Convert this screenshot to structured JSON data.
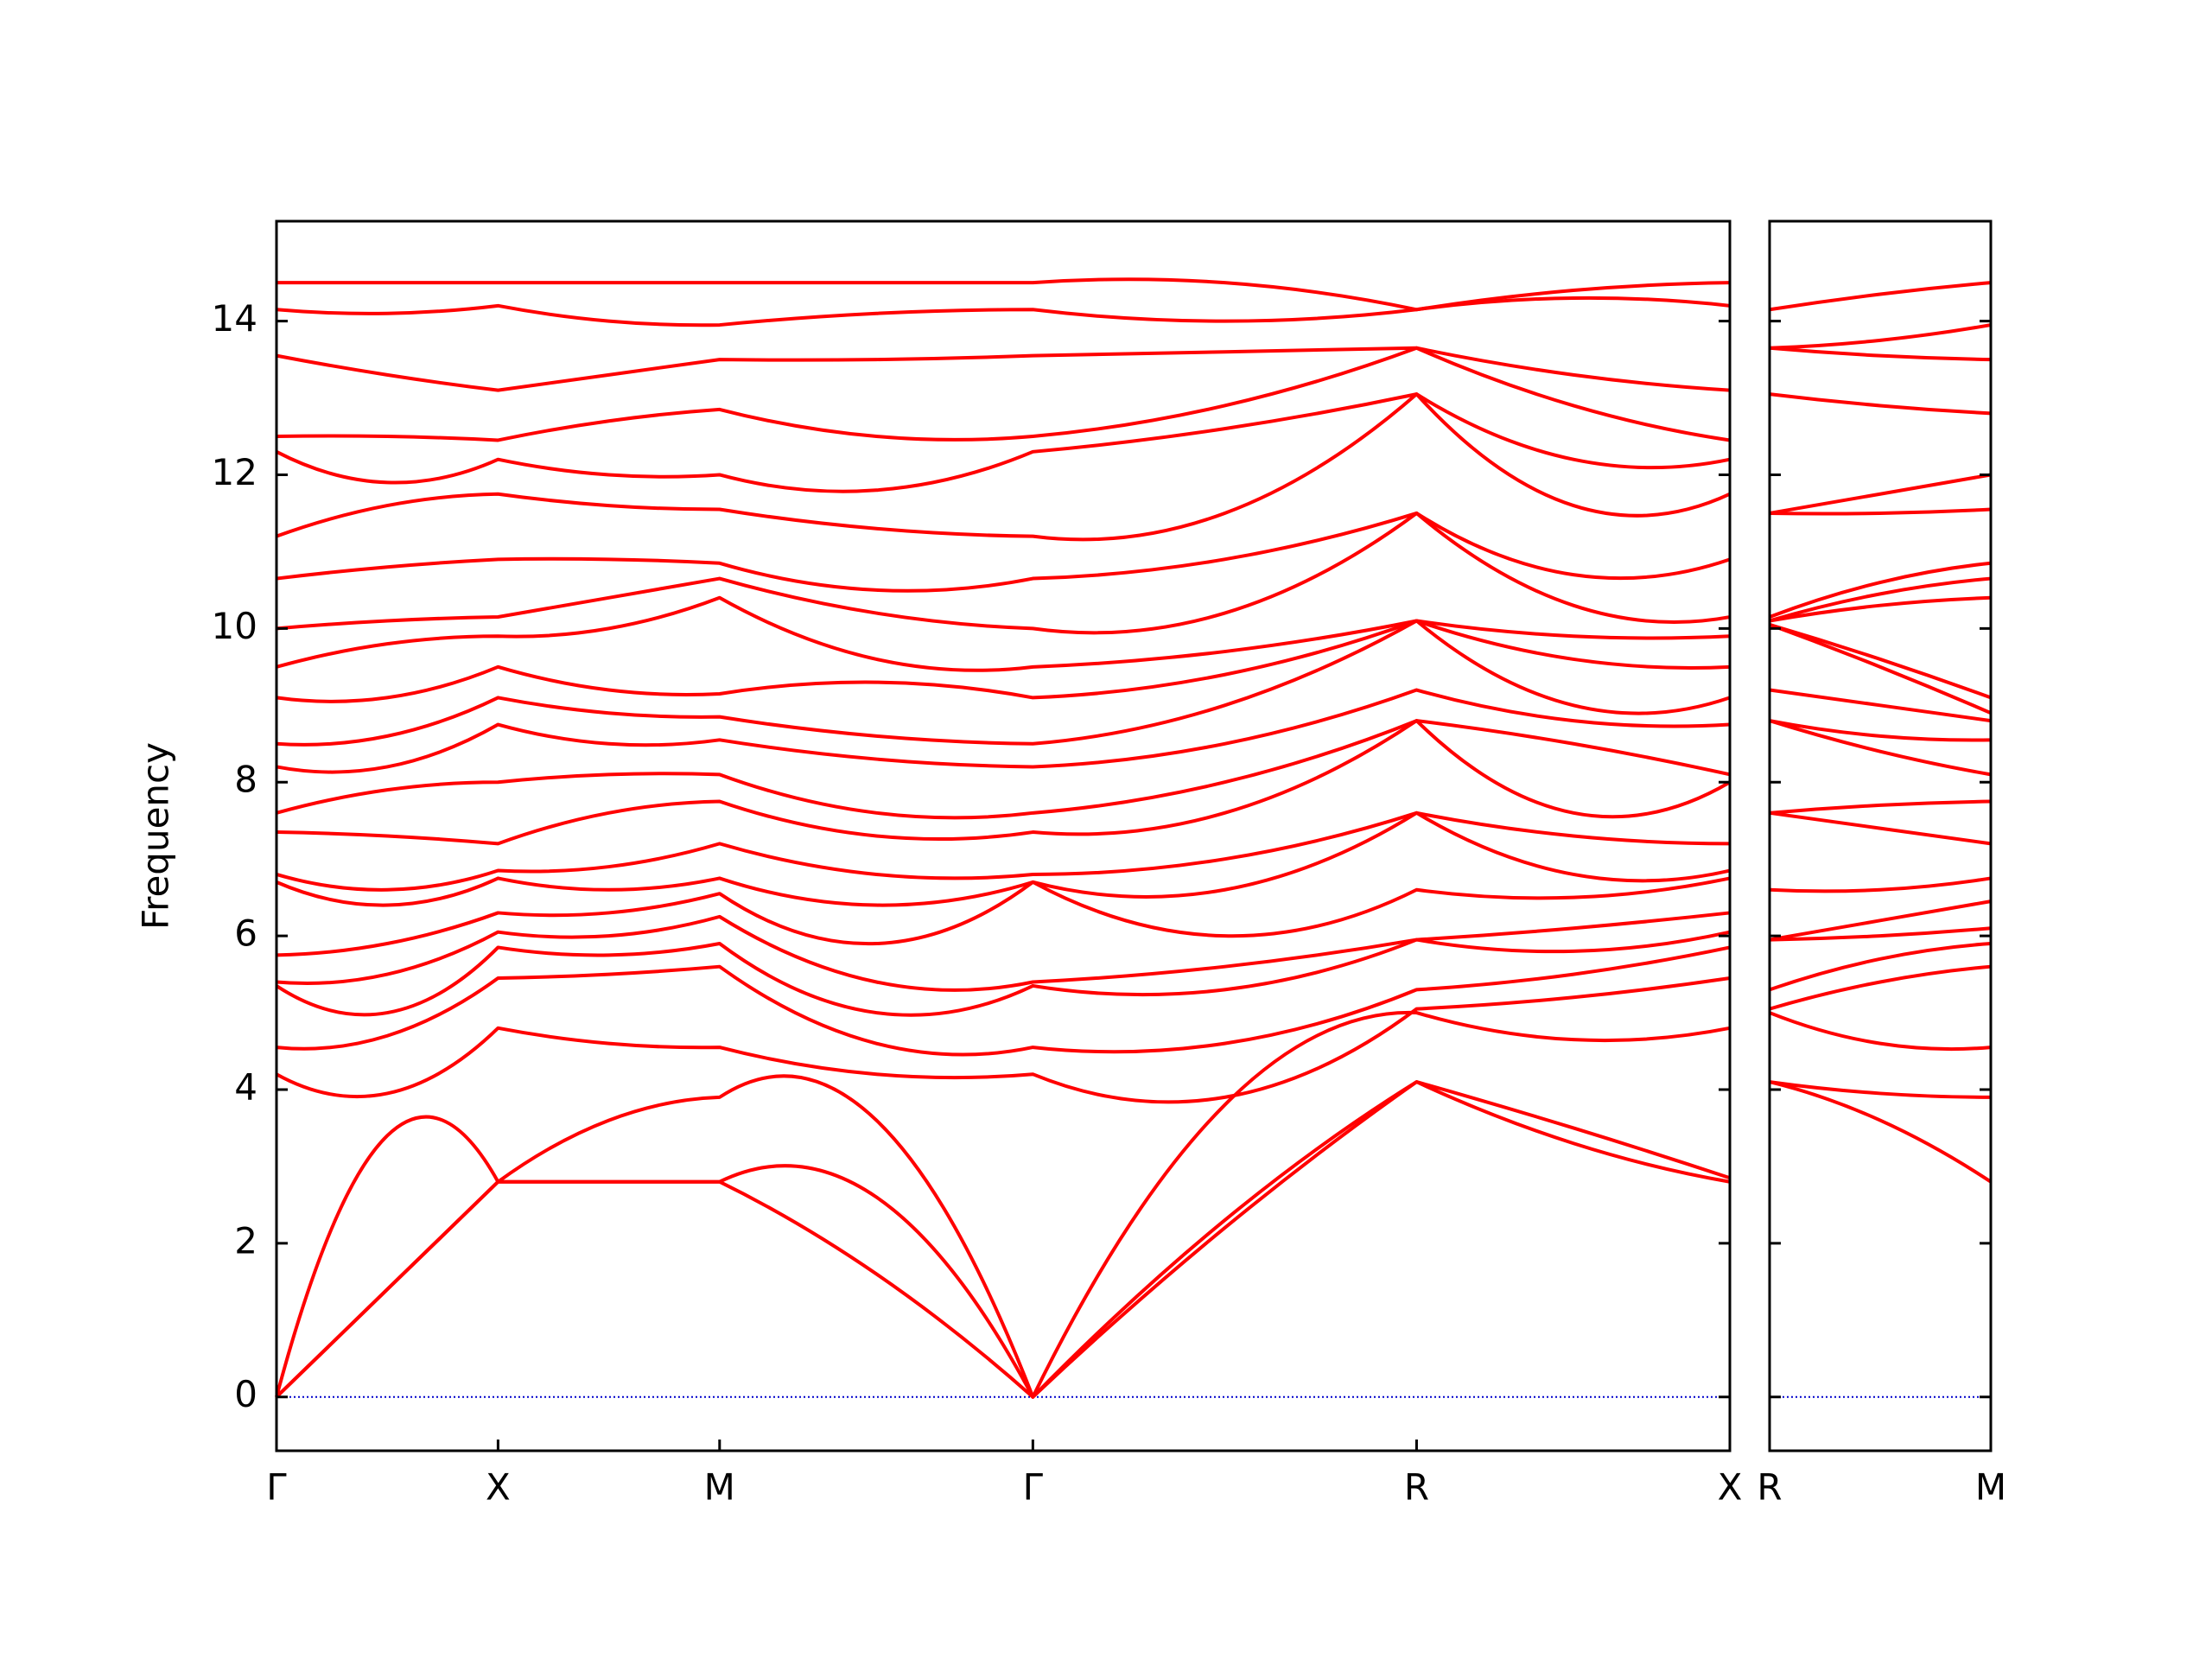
{
  "chart_data": [
    {
      "type": "line",
      "ylabel": "Frequency",
      "color": "#ff0000",
      "zero_line": 0,
      "zero_line_color": "#0000cc",
      "x": [
        0,
        0.25,
        0.5,
        0.75,
        1.0,
        1.354,
        1.707,
        2.14,
        2.573,
        2.927,
        3.28
      ],
      "xlim": [
        0,
        3.28
      ],
      "xticks": [
        {
          "value": 0,
          "label": "Γ"
        },
        {
          "value": 0.5,
          "label": "X"
        },
        {
          "value": 1.0,
          "label": "M"
        },
        {
          "value": 1.707,
          "label": "Γ"
        },
        {
          "value": 2.573,
          "label": "R"
        },
        {
          "value": 3.28,
          "label": "X"
        }
      ],
      "ylim": [
        -0.7,
        15.3
      ],
      "yticks": [
        0,
        2,
        4,
        6,
        8,
        10,
        12,
        14
      ],
      "series": [
        {
          "values": [
            0,
            1.4,
            2.8,
            2.8,
            2.8,
            1.6,
            0,
            2.2,
            4.1,
            3.3,
            2.8
          ]
        },
        {
          "values": [
            0,
            1.4,
            2.8,
            2.8,
            2.8,
            2.6,
            0,
            2.3,
            4.1,
            3.5,
            2.85
          ]
        },
        {
          "values": [
            0,
            3.4,
            2.8,
            3.6,
            3.9,
            3.6,
            0,
            3.8,
            5.0,
            4.65,
            4.8
          ]
        },
        {
          "values": [
            4.2,
            3.95,
            4.8,
            4.6,
            4.55,
            4.2,
            4.2,
            3.9,
            5.05,
            5.2,
            5.45
          ]
        },
        {
          "values": [
            4.55,
            4.7,
            5.45,
            5.5,
            5.6,
            4.6,
            4.55,
            4.6,
            5.3,
            5.5,
            5.85
          ]
        },
        {
          "values": [
            5.35,
            5.0,
            5.85,
            5.75,
            5.9,
            5.0,
            5.35,
            5.3,
            5.95,
            5.8,
            6.05
          ]
        },
        {
          "values": [
            5.4,
            5.5,
            6.05,
            6.0,
            6.25,
            5.4,
            5.4,
            5.6,
            5.95,
            6.1,
            6.3
          ]
        },
        {
          "values": [
            5.75,
            5.9,
            6.3,
            6.3,
            6.55,
            5.9,
            6.7,
            6.0,
            6.6,
            6.5,
            6.75
          ]
        },
        {
          "values": [
            6.7,
            6.4,
            6.75,
            6.6,
            6.75,
            6.4,
            6.7,
            6.6,
            7.6,
            6.8,
            6.85
          ]
        },
        {
          "values": [
            6.8,
            6.6,
            6.85,
            6.9,
            7.2,
            6.8,
            6.8,
            7.0,
            7.6,
            7.3,
            7.2
          ]
        },
        {
          "values": [
            7.35,
            7.3,
            7.2,
            7.6,
            7.75,
            7.3,
            7.35,
            7.6,
            8.8,
            7.6,
            8.0
          ]
        },
        {
          "values": [
            7.6,
            7.9,
            8.0,
            8.1,
            8.1,
            7.6,
            7.6,
            8.0,
            8.8,
            8.5,
            8.1
          ]
        },
        {
          "values": [
            8.2,
            8.2,
            8.75,
            8.5,
            8.55,
            8.3,
            8.2,
            8.5,
            9.2,
            8.8,
            8.75
          ]
        },
        {
          "values": [
            8.5,
            8.6,
            9.1,
            8.9,
            8.85,
            8.6,
            8.5,
            9.0,
            10.1,
            9.0,
            9.1
          ]
        },
        {
          "values": [
            9.1,
            9.1,
            9.5,
            9.2,
            9.15,
            9.3,
            9.1,
            9.4,
            10.1,
            9.6,
            9.5
          ]
        },
        {
          "values": [
            9.5,
            9.8,
            9.9,
            10.0,
            10.4,
            9.6,
            9.5,
            9.7,
            10.1,
            9.9,
            9.9
          ]
        },
        {
          "values": [
            10.0,
            10.1,
            10.15,
            10.4,
            10.65,
            10.2,
            10.0,
            10.2,
            11.5,
            10.3,
            10.15
          ]
        },
        {
          "values": [
            10.65,
            10.8,
            10.9,
            10.9,
            10.85,
            10.5,
            10.65,
            10.9,
            11.5,
            10.7,
            10.9
          ]
        },
        {
          "values": [
            11.2,
            11.6,
            11.75,
            11.6,
            11.55,
            11.3,
            11.2,
            11.5,
            13.05,
            11.6,
            11.75
          ]
        },
        {
          "values": [
            12.3,
            11.9,
            12.2,
            12.0,
            12.0,
            11.8,
            12.3,
            12.6,
            13.05,
            12.2,
            12.2
          ]
        },
        {
          "values": [
            12.5,
            12.5,
            12.45,
            12.7,
            12.85,
            12.5,
            12.5,
            12.9,
            13.65,
            12.9,
            12.45
          ]
        },
        {
          "values": [
            13.55,
            13.3,
            13.1,
            13.3,
            13.5,
            13.5,
            13.55,
            13.6,
            13.65,
            13.3,
            13.1
          ]
        },
        {
          "values": [
            14.15,
            14.1,
            14.2,
            14.0,
            13.95,
            14.1,
            14.15,
            14.0,
            14.15,
            14.3,
            14.2
          ]
        },
        {
          "values": [
            14.5,
            14.5,
            14.5,
            14.5,
            14.5,
            14.5,
            14.5,
            14.5,
            14.15,
            14.4,
            14.5
          ]
        }
      ]
    },
    {
      "type": "line",
      "color": "#ff0000",
      "zero_line": 0,
      "zero_line_color": "#0000cc",
      "x": [
        0,
        0.25,
        0.5
      ],
      "xlim": [
        0,
        0.5
      ],
      "xticks": [
        {
          "value": 0,
          "label": "R"
        },
        {
          "value": 0.5,
          "label": "M"
        }
      ],
      "ylim": [
        -0.7,
        15.3
      ],
      "yticks": [
        0,
        2,
        4,
        6,
        8,
        10,
        12,
        14
      ],
      "series": [
        {
          "values": [
            4.1,
            3.6,
            2.8
          ]
        },
        {
          "values": [
            4.1,
            3.95,
            3.9
          ]
        },
        {
          "values": [
            5.0,
            4.6,
            4.55
          ]
        },
        {
          "values": [
            5.05,
            5.4,
            5.6
          ]
        },
        {
          "values": [
            5.3,
            5.7,
            5.9
          ]
        },
        {
          "values": [
            5.95,
            6.0,
            6.1
          ]
        },
        {
          "values": [
            5.95,
            6.2,
            6.45
          ]
        },
        {
          "values": [
            6.6,
            6.6,
            6.75
          ]
        },
        {
          "values": [
            7.6,
            7.4,
            7.2
          ]
        },
        {
          "values": [
            7.6,
            7.7,
            7.75
          ]
        },
        {
          "values": [
            8.8,
            8.4,
            8.1
          ]
        },
        {
          "values": [
            8.8,
            8.6,
            8.55
          ]
        },
        {
          "values": [
            9.2,
            9.0,
            8.8
          ]
        },
        {
          "values": [
            10.05,
            9.5,
            8.9
          ]
        },
        {
          "values": [
            10.05,
            9.6,
            9.1
          ]
        },
        {
          "values": [
            10.1,
            10.3,
            10.4
          ]
        },
        {
          "values": [
            10.1,
            10.45,
            10.65
          ]
        },
        {
          "values": [
            10.15,
            10.6,
            10.85
          ]
        },
        {
          "values": [
            11.5,
            11.5,
            11.55
          ]
        },
        {
          "values": [
            11.5,
            11.75,
            12.0
          ]
        },
        {
          "values": [
            13.05,
            12.9,
            12.8
          ]
        },
        {
          "values": [
            13.65,
            13.55,
            13.5
          ]
        },
        {
          "values": [
            13.65,
            13.75,
            13.95
          ]
        },
        {
          "values": [
            14.15,
            14.35,
            14.5
          ]
        }
      ]
    }
  ]
}
